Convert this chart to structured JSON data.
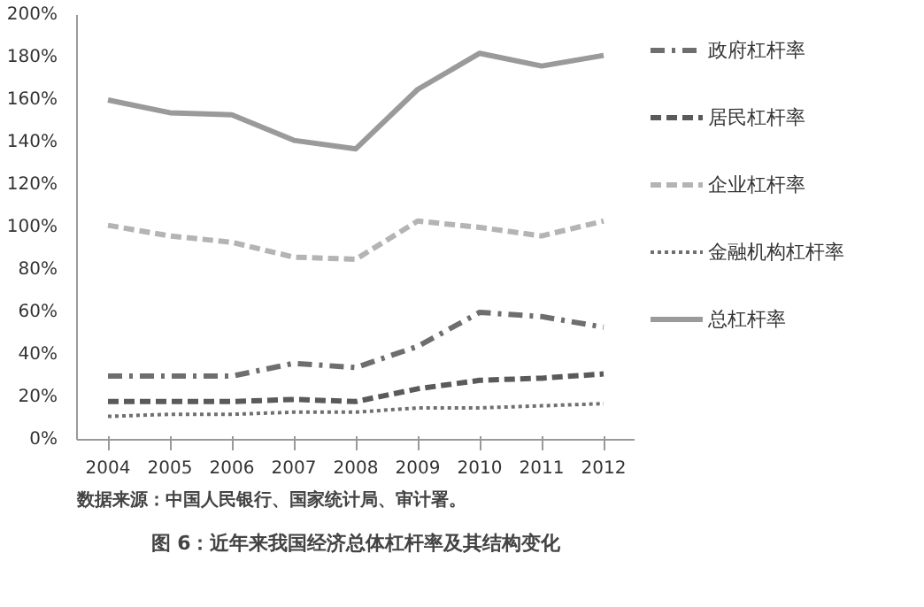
{
  "chart_data": {
    "type": "line",
    "title": "图 6：近年来我国经济总体杠杆率及其结构变化",
    "annotations": [
      "数据来源：中国人民银行、国家统计局、审计署。"
    ],
    "categories": [
      "2004",
      "2005",
      "2006",
      "2007",
      "2008",
      "2009",
      "2010",
      "2011",
      "2012"
    ],
    "ylim": [
      0,
      200
    ],
    "yticks": [
      {
        "value": 0,
        "label": "0%"
      },
      {
        "value": 20,
        "label": "20%"
      },
      {
        "value": 40,
        "label": "40%"
      },
      {
        "value": 60,
        "label": "60%"
      },
      {
        "value": 80,
        "label": "80%"
      },
      {
        "value": 100,
        "label": "100%"
      },
      {
        "value": 120,
        "label": "120%"
      },
      {
        "value": 140,
        "label": "140%"
      },
      {
        "value": 160,
        "label": "160%"
      },
      {
        "value": 180,
        "label": "180%"
      },
      {
        "value": 200,
        "label": "200%"
      }
    ],
    "grid": false,
    "legend": "right",
    "marker": "none",
    "series": [
      {
        "name": "政府杠杆率",
        "color": "#6e6e6e",
        "line_style": "dashdot",
        "values": [
          30,
          30,
          30,
          36,
          34,
          44,
          60,
          58,
          53
        ]
      },
      {
        "name": "居民杠杆率",
        "color": "#5a5a5a",
        "line_style": "dashed",
        "values": [
          18,
          18,
          18,
          19,
          18,
          24,
          28,
          29,
          31
        ]
      },
      {
        "name": "企业杠杆率",
        "color": "#b4b4b4",
        "line_style": "dashed",
        "values": [
          101,
          96,
          93,
          86,
          85,
          103,
          100,
          96,
          103
        ]
      },
      {
        "name": "金融机构杠杆率",
        "color": "#707070",
        "line_style": "dotted",
        "values": [
          11,
          12,
          12,
          13,
          13,
          15,
          15,
          16,
          17
        ]
      },
      {
        "name": "总杠杆率",
        "color": "#9a9a9a",
        "line_style": "solid",
        "values": [
          160,
          154,
          153,
          141,
          137,
          165,
          182,
          176,
          181
        ]
      }
    ]
  }
}
